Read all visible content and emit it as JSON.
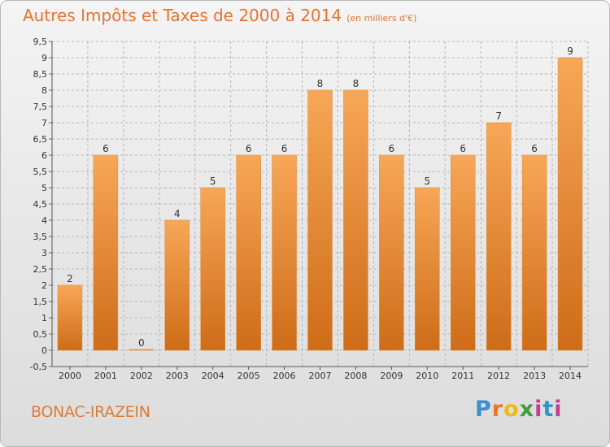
{
  "title": "Autres Impôts et Taxes de 2000 à 2014",
  "subtitle": "(en milliers d'€)",
  "commune": "BONAC-IRAZEIN",
  "logo": {
    "p": "P",
    "r": "r",
    "o": "o",
    "x": "x",
    "i": "i",
    "t": "t",
    "i2": "i"
  },
  "colors": {
    "bar_top": "#f7a757",
    "bar_bottom": "#ce6c18",
    "title": "#e5732f",
    "grid": "#b5b5b5"
  },
  "chart_data": {
    "type": "bar",
    "categories": [
      "2000",
      "2001",
      "2002",
      "2003",
      "2004",
      "2005",
      "2006",
      "2007",
      "2008",
      "2009",
      "2010",
      "2011",
      "2012",
      "2013",
      "2014"
    ],
    "values": [
      2,
      6,
      0,
      4,
      5,
      6,
      6,
      8,
      8,
      6,
      5,
      6,
      7,
      6,
      9
    ],
    "data_labels": [
      "2",
      "6",
      "0",
      "4",
      "5",
      "6",
      "6",
      "8",
      "8",
      "6",
      "5",
      "6",
      "7",
      "6",
      "9"
    ],
    "ylim": [
      -0.5,
      9.5
    ],
    "yticks": [
      "-0,5",
      "0",
      "0,5",
      "1",
      "1,5",
      "2",
      "2,5",
      "3",
      "3,5",
      "4",
      "4,5",
      "5",
      "5,5",
      "6",
      "6,5",
      "7",
      "7,5",
      "8",
      "8,5",
      "9",
      "9,5"
    ],
    "ytick_values": [
      -0.5,
      0,
      0.5,
      1,
      1.5,
      2,
      2.5,
      3,
      3.5,
      4,
      4.5,
      5,
      5.5,
      6,
      6.5,
      7,
      7.5,
      8,
      8.5,
      9,
      9.5
    ],
    "grid": true
  }
}
